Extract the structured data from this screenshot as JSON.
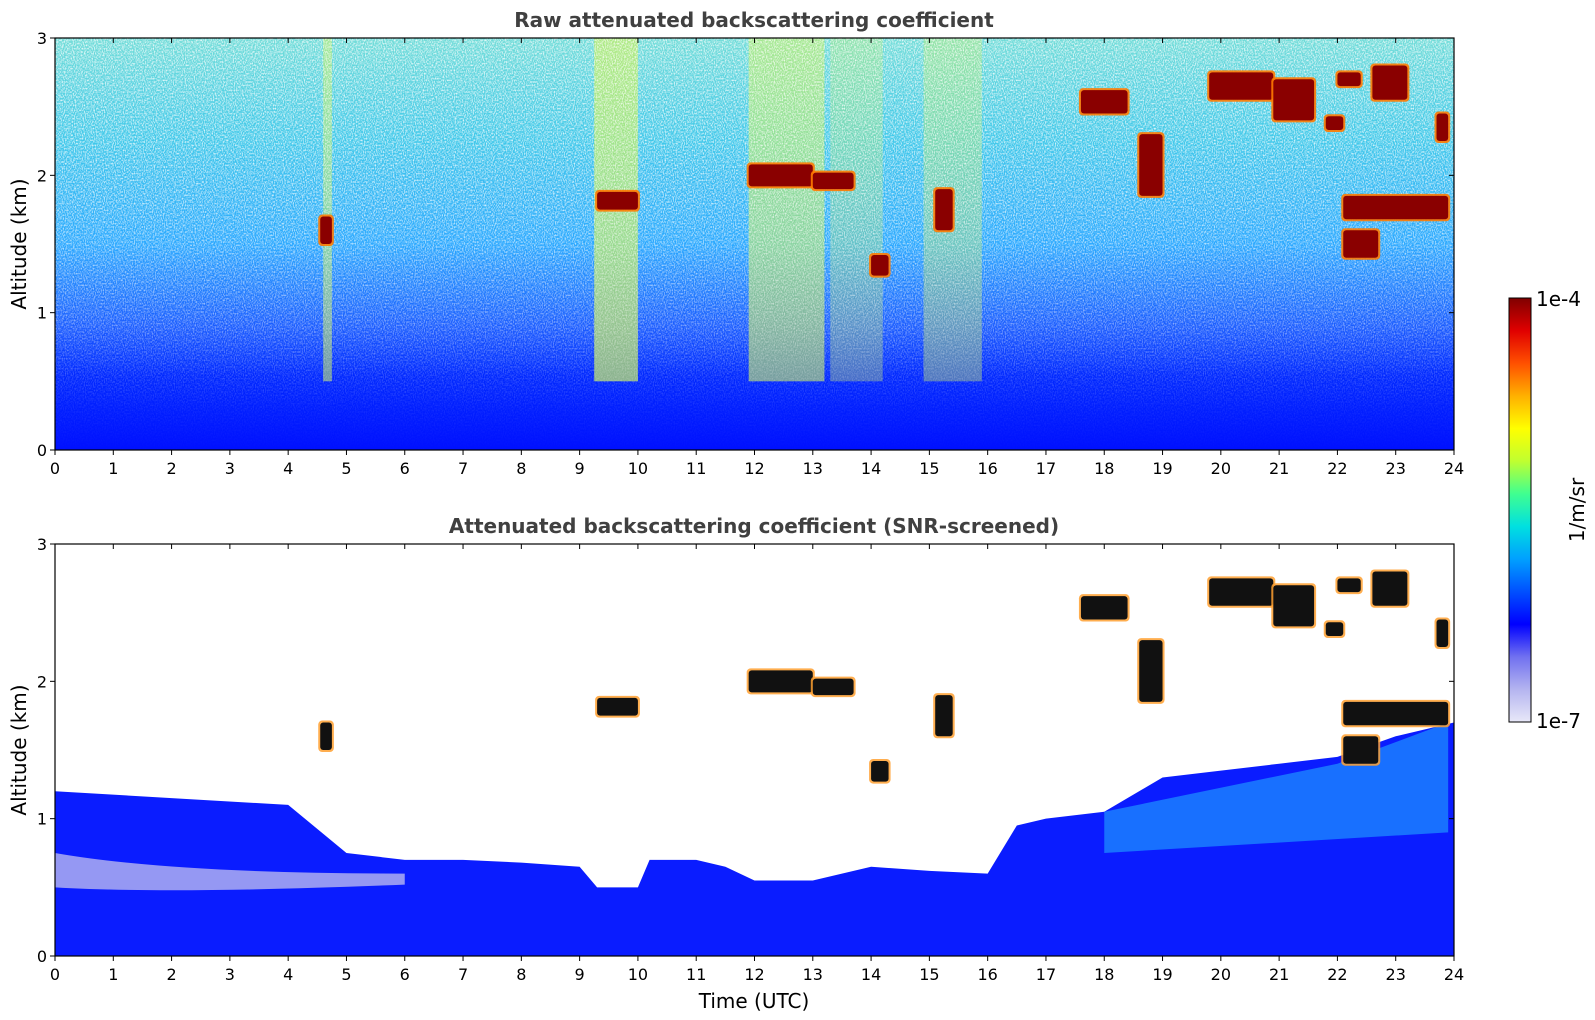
{
  "figure": {
    "colorbar": {
      "max_label": "1e-4",
      "min_label": "1e-7",
      "unit_label": "1/m/sr",
      "scale": "log",
      "colors": [
        "#e8e8f8",
        "#b4b4f0",
        "#7070f0",
        "#0000ff",
        "#0050ff",
        "#00a0ff",
        "#00e0e0",
        "#40ff90",
        "#c0ff30",
        "#ffff00",
        "#ffb000",
        "#ff5000",
        "#e00000",
        "#800000"
      ]
    }
  },
  "chart_data": [
    {
      "type": "heatmap",
      "id": "raw",
      "title": "Raw attenuated backscattering coefficient",
      "xlabel": "",
      "ylabel": "Altitude (km)",
      "xlim": [
        0,
        24
      ],
      "ylim": [
        0,
        3
      ],
      "x_ticks": [
        "0",
        "1",
        "2",
        "3",
        "4",
        "5",
        "6",
        "7",
        "8",
        "9",
        "10",
        "11",
        "12",
        "13",
        "14",
        "15",
        "16",
        "17",
        "18",
        "19",
        "20",
        "21",
        "22",
        "23",
        "24"
      ],
      "y_ticks": [
        "0",
        "1",
        "2",
        "3"
      ],
      "cloud_layers": [
        {
          "t0": 4.55,
          "t1": 4.75,
          "z0": 1.5,
          "z1": 1.7
        },
        {
          "t0": 9.3,
          "t1": 10.0,
          "z0": 1.75,
          "z1": 1.88
        },
        {
          "t0": 11.9,
          "t1": 13.0,
          "z0": 1.92,
          "z1": 2.08
        },
        {
          "t0": 13.0,
          "t1": 13.7,
          "z0": 1.9,
          "z1": 2.02
        },
        {
          "t0": 14.0,
          "t1": 14.3,
          "z0": 1.27,
          "z1": 1.42
        },
        {
          "t0": 15.1,
          "t1": 15.4,
          "z0": 1.6,
          "z1": 1.9
        },
        {
          "t0": 17.6,
          "t1": 18.4,
          "z0": 2.45,
          "z1": 2.62
        },
        {
          "t0": 18.6,
          "t1": 19.0,
          "z0": 1.85,
          "z1": 2.3
        },
        {
          "t0": 19.8,
          "t1": 20.9,
          "z0": 2.55,
          "z1": 2.75
        },
        {
          "t0": 20.9,
          "t1": 21.6,
          "z0": 2.4,
          "z1": 2.7
        },
        {
          "t0": 21.8,
          "t1": 22.1,
          "z0": 2.33,
          "z1": 2.43
        },
        {
          "t0": 22.0,
          "t1": 22.4,
          "z0": 2.65,
          "z1": 2.75
        },
        {
          "t0": 22.6,
          "t1": 23.2,
          "z0": 2.55,
          "z1": 2.8
        },
        {
          "t0": 23.7,
          "t1": 23.9,
          "z0": 2.25,
          "z1": 2.45
        },
        {
          "t0": 22.1,
          "t1": 22.7,
          "z0": 1.4,
          "z1": 1.6
        },
        {
          "t0": 22.1,
          "t1": 23.9,
          "z0": 1.68,
          "z1": 1.85
        }
      ]
    },
    {
      "type": "heatmap",
      "id": "screened",
      "title": "Attenuated backscattering coefficient (SNR-screened)",
      "xlabel": "Time (UTC)",
      "ylabel": "Altitude (km)",
      "xlim": [
        0,
        24
      ],
      "ylim": [
        0,
        3
      ],
      "x_ticks": [
        "0",
        "1",
        "2",
        "3",
        "4",
        "5",
        "6",
        "7",
        "8",
        "9",
        "10",
        "11",
        "12",
        "13",
        "14",
        "15",
        "16",
        "17",
        "18",
        "19",
        "20",
        "21",
        "22",
        "23",
        "24"
      ],
      "y_ticks": [
        "0",
        "1",
        "2",
        "3"
      ],
      "aerosol_top_km": [
        [
          0,
          1.2
        ],
        [
          2,
          1.15
        ],
        [
          4,
          1.1
        ],
        [
          5,
          0.75
        ],
        [
          6,
          0.7
        ],
        [
          7,
          0.7
        ],
        [
          8,
          0.68
        ],
        [
          9,
          0.65
        ],
        [
          9.3,
          0.5
        ],
        [
          10,
          0.5
        ],
        [
          10.2,
          0.7
        ],
        [
          11,
          0.7
        ],
        [
          11.5,
          0.65
        ],
        [
          12,
          0.55
        ],
        [
          13,
          0.55
        ],
        [
          13.5,
          0.6
        ],
        [
          14,
          0.65
        ],
        [
          15,
          0.62
        ],
        [
          16,
          0.6
        ],
        [
          16.5,
          0.95
        ],
        [
          17,
          1.0
        ],
        [
          18,
          1.05
        ],
        [
          19,
          1.3
        ],
        [
          20,
          1.35
        ],
        [
          21,
          1.4
        ],
        [
          22,
          1.45
        ],
        [
          23,
          1.6
        ],
        [
          24,
          1.7
        ]
      ]
    }
  ]
}
